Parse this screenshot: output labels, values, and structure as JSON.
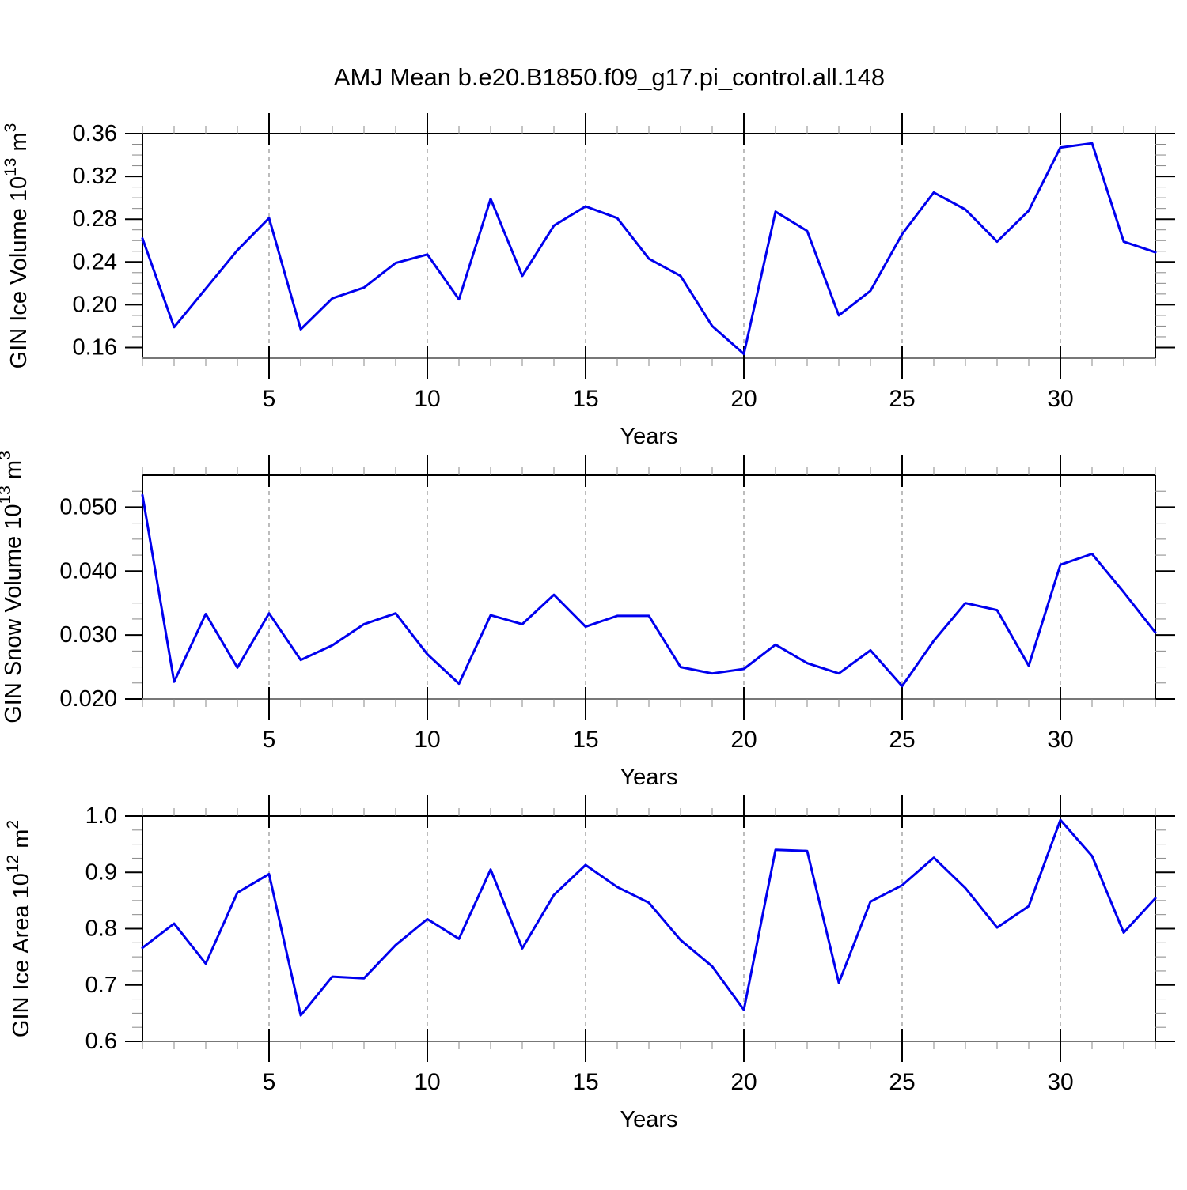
{
  "title": "AMJ Mean b.e20.B1850.f09_g17.pi_control.all.148",
  "line_color": "#0000ee",
  "grid_color": "#999999",
  "frame_color": "#000000",
  "bottom_axis_color": "#777777",
  "minor_tick_color": "#888888",
  "chart_data": [
    {
      "type": "line",
      "slug": "ice-volume",
      "ylabel_parts": [
        {
          "t": "GIN Ice Volume 10",
          "sup": false
        },
        {
          "t": "13",
          "sup": true
        },
        {
          "t": " m",
          "sup": false
        },
        {
          "t": "3",
          "sup": true
        }
      ],
      "xlabel": "Years",
      "xlim": [
        1,
        33
      ],
      "ylim": [
        0.15,
        0.36
      ],
      "xtick_values": [
        5,
        10,
        15,
        20,
        25,
        30
      ],
      "xtick_labels": [
        "5",
        "10",
        "15",
        "20",
        "25",
        "30"
      ],
      "x_minor_step": 1,
      "ytick_values": [
        0.36,
        0.32,
        0.28,
        0.24,
        0.2,
        0.16
      ],
      "ytick_labels": [
        "0.36",
        "0.32",
        "0.28",
        "0.24",
        "0.20",
        "0.16"
      ],
      "y_minor_step": 0.01,
      "grid_on_xticks": true,
      "x": [
        1,
        2,
        3,
        4,
        5,
        6,
        7,
        8,
        9,
        10,
        11,
        12,
        13,
        14,
        15,
        16,
        17,
        18,
        19,
        20,
        21,
        22,
        23,
        24,
        25,
        26,
        27,
        28,
        29,
        30,
        31,
        32,
        33
      ],
      "values": [
        0.262,
        0.179,
        0.215,
        0.251,
        0.281,
        0.177,
        0.206,
        0.216,
        0.239,
        0.247,
        0.205,
        0.299,
        0.227,
        0.274,
        0.292,
        0.281,
        0.243,
        0.227,
        0.18,
        0.154,
        0.287,
        0.269,
        0.19,
        0.213,
        0.266,
        0.305,
        0.289,
        0.259,
        0.288,
        0.347,
        0.351,
        0.259,
        0.249
      ]
    },
    {
      "type": "line",
      "slug": "snow-volume",
      "ylabel_parts": [
        {
          "t": "GIN Snow Volume 10",
          "sup": false
        },
        {
          "t": "13",
          "sup": true
        },
        {
          "t": " m",
          "sup": false
        },
        {
          "t": "3",
          "sup": true
        }
      ],
      "xlabel": "Years",
      "xlim": [
        1,
        33
      ],
      "ylim": [
        0.02,
        0.055
      ],
      "xtick_values": [
        5,
        10,
        15,
        20,
        25,
        30
      ],
      "xtick_labels": [
        "5",
        "10",
        "15",
        "20",
        "25",
        "30"
      ],
      "x_minor_step": 1,
      "ytick_values": [
        0.05,
        0.04,
        0.03,
        0.02
      ],
      "ytick_labels": [
        "0.050",
        "0.040",
        "0.030",
        "0.020"
      ],
      "y_minor_step": 0.0025,
      "grid_on_xticks": true,
      "x": [
        1,
        2,
        3,
        4,
        5,
        6,
        7,
        8,
        9,
        10,
        11,
        12,
        13,
        14,
        15,
        16,
        17,
        18,
        19,
        20,
        21,
        22,
        23,
        24,
        25,
        26,
        27,
        28,
        29,
        30,
        31,
        32,
        33
      ],
      "values": [
        0.0519,
        0.0227,
        0.0333,
        0.0249,
        0.0334,
        0.0261,
        0.0284,
        0.0317,
        0.0334,
        0.027,
        0.0224,
        0.0331,
        0.0317,
        0.0363,
        0.0313,
        0.033,
        0.033,
        0.025,
        0.024,
        0.0247,
        0.0285,
        0.0256,
        0.024,
        0.0276,
        0.022,
        0.0291,
        0.035,
        0.0339,
        0.0252,
        0.041,
        0.0427,
        0.0367,
        0.0304
      ]
    },
    {
      "type": "line",
      "slug": "ice-area",
      "ylabel_parts": [
        {
          "t": "GIN Ice Area 10",
          "sup": false
        },
        {
          "t": "12",
          "sup": true
        },
        {
          "t": " m",
          "sup": false
        },
        {
          "t": "2",
          "sup": true
        }
      ],
      "xlabel": "Years",
      "xlim": [
        1,
        33
      ],
      "ylim": [
        0.6,
        1.0
      ],
      "xtick_values": [
        5,
        10,
        15,
        20,
        25,
        30
      ],
      "xtick_labels": [
        "5",
        "10",
        "15",
        "20",
        "25",
        "30"
      ],
      "x_minor_step": 1,
      "ytick_values": [
        1.0,
        0.9,
        0.8,
        0.7,
        0.6
      ],
      "ytick_labels": [
        "1.0",
        "0.9",
        "0.8",
        "0.7",
        "0.6"
      ],
      "y_minor_step": 0.025,
      "grid_on_xticks": true,
      "x": [
        1,
        2,
        3,
        4,
        5,
        6,
        7,
        8,
        9,
        10,
        11,
        12,
        13,
        14,
        15,
        16,
        17,
        18,
        19,
        20,
        21,
        22,
        23,
        24,
        25,
        26,
        27,
        28,
        29,
        30,
        31,
        32,
        33
      ],
      "values": [
        0.766,
        0.809,
        0.738,
        0.864,
        0.897,
        0.646,
        0.715,
        0.712,
        0.771,
        0.817,
        0.782,
        0.905,
        0.765,
        0.86,
        0.913,
        0.874,
        0.846,
        0.78,
        0.733,
        0.656,
        0.94,
        0.938,
        0.704,
        0.848,
        0.877,
        0.926,
        0.872,
        0.802,
        0.84,
        0.993,
        0.929,
        0.793,
        0.854
      ]
    }
  ]
}
